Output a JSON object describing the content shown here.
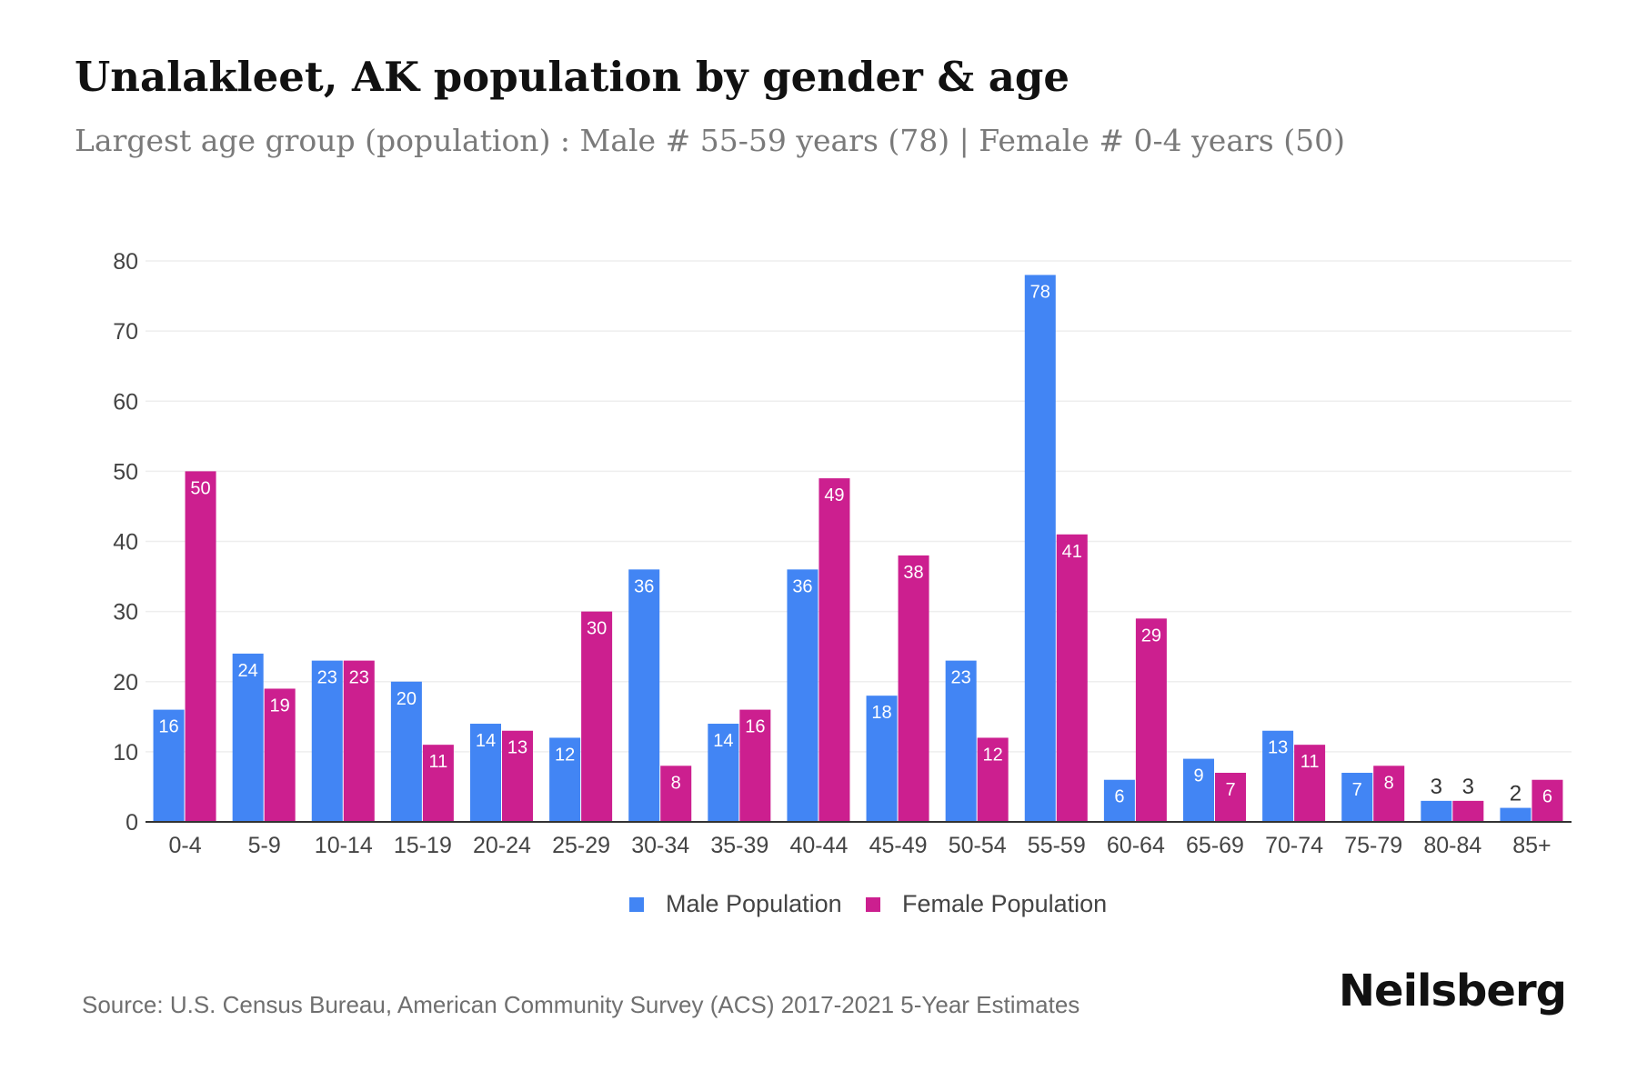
{
  "header": {
    "title": "Unalakleet, AK population by gender & age",
    "subtitle": "Largest age group (population) : Male # 55-59 years (78) | Female # 0-4 years (50)"
  },
  "footer": {
    "source": "Source: U.S. Census Bureau, American Community Survey (ACS) 2017-2021 5-Year Estimates",
    "brand": "Neilsberg"
  },
  "colors": {
    "male": "#4285f4",
    "female": "#cc1f8f",
    "grid": "#eeeeee",
    "axis": "#333333",
    "tick_text": "#444444"
  },
  "chart_data": {
    "type": "bar",
    "categories": [
      "0-4",
      "5-9",
      "10-14",
      "15-19",
      "20-24",
      "25-29",
      "30-34",
      "35-39",
      "40-44",
      "45-49",
      "50-54",
      "55-59",
      "60-64",
      "65-69",
      "70-74",
      "75-79",
      "80-84",
      "85+"
    ],
    "series": [
      {
        "name": "Male Population",
        "values": [
          16,
          24,
          23,
          20,
          14,
          12,
          36,
          14,
          36,
          18,
          23,
          78,
          6,
          9,
          13,
          7,
          3,
          2
        ]
      },
      {
        "name": "Female Population",
        "values": [
          50,
          19,
          23,
          11,
          13,
          30,
          8,
          16,
          49,
          38,
          12,
          41,
          29,
          7,
          11,
          8,
          3,
          6
        ]
      }
    ],
    "ylim": [
      0,
      80
    ],
    "yticks": [
      0,
      10,
      20,
      30,
      40,
      50,
      60,
      70,
      80
    ],
    "grid": true,
    "legend": "bottom-center",
    "data_labels": true
  }
}
